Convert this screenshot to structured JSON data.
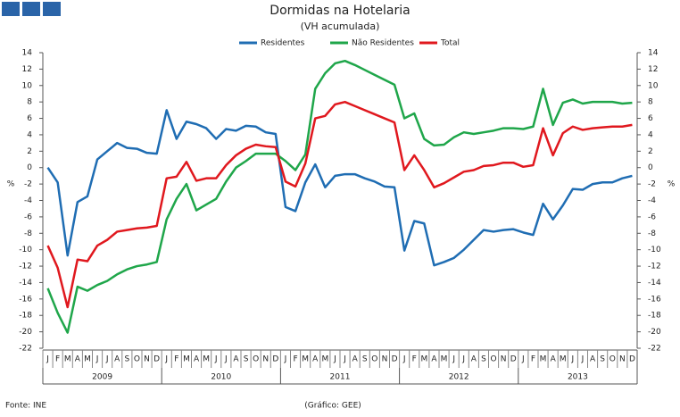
{
  "chart_data": {
    "type": "line",
    "title": "Dormidas na Hotelaria",
    "subtitle": "(VH acumulada)",
    "y_label": "%",
    "source": "Fonte: INE",
    "credit": "(Gráfico: GEE)",
    "categories": [
      "J",
      "F",
      "M",
      "A",
      "M",
      "J",
      "J",
      "A",
      "S",
      "O",
      "N",
      "D",
      "J",
      "F",
      "M",
      "A",
      "M",
      "J",
      "J",
      "A",
      "S",
      "O",
      "N",
      "D",
      "J",
      "F",
      "M",
      "A",
      "M",
      "J",
      "J",
      "A",
      "S",
      "O",
      "N",
      "D",
      "J",
      "F",
      "M",
      "A",
      "M",
      "J",
      "J",
      "A",
      "S",
      "O",
      "N",
      "D",
      "J",
      "F",
      "M",
      "A",
      "M",
      "J",
      "J",
      "A",
      "S",
      "O",
      "N",
      "D"
    ],
    "groups": [
      "2009",
      "2010",
      "2011",
      "2012",
      "2013"
    ],
    "ylim": [
      -22,
      14
    ],
    "yticks": [
      -22,
      -20,
      -18,
      -16,
      -14,
      -12,
      -10,
      -8,
      -6,
      -4,
      -2,
      0,
      2,
      4,
      6,
      8,
      10,
      12,
      14
    ],
    "grid": false,
    "series": [
      {
        "name": "Residentes",
        "color": "#1f6db3",
        "values": [
          0,
          -1.8,
          -10.7,
          -4.2,
          -3.5,
          1,
          2,
          3,
          2.4,
          2.3,
          1.8,
          1.7,
          7,
          3.5,
          5.6,
          5.3,
          4.8,
          3.5,
          4.7,
          4.5,
          5.1,
          5,
          4.3,
          4.1,
          -4.8,
          -5.3,
          -1.8,
          0.4,
          -2.4,
          -1,
          -0.8,
          -0.8,
          -1.3,
          -1.7,
          -2.3,
          -2.4,
          -10.1,
          -6.5,
          -6.8,
          -11.9,
          -11.5,
          -11,
          -10,
          -8.8,
          -7.6,
          -7.8,
          -7.6,
          -7.5,
          -7.9,
          -8.2,
          -4.4,
          -6.3,
          -4.6,
          -2.6,
          -2.7,
          -2,
          -1.8,
          -1.8,
          -1.3,
          -1
        ]
      },
      {
        "name": "Não Residentes",
        "color": "#1fa64a",
        "values": [
          -14.7,
          -17.7,
          -20.1,
          -14.5,
          -15,
          -14.3,
          -13.8,
          -13,
          -12.4,
          -12,
          -11.8,
          -11.5,
          -6.3,
          -3.8,
          -2,
          -5.2,
          -4.5,
          -3.8,
          -1.7,
          0,
          0.8,
          1.7,
          1.7,
          1.7,
          0.8,
          -0.3,
          1.6,
          9.6,
          11.5,
          12.7,
          13,
          12.5,
          11.9,
          11.3,
          10.7,
          10.1,
          6,
          6.6,
          3.5,
          2.7,
          2.8,
          3.7,
          4.3,
          4.1,
          4.3,
          4.5,
          4.8,
          4.8,
          4.7,
          5,
          9.6,
          5.2,
          7.9,
          8.3,
          7.8,
          8,
          8,
          8,
          7.8,
          7.9
        ]
      },
      {
        "name": "Total",
        "color": "#e0181e",
        "values": [
          -9.5,
          -12.2,
          -17,
          -11.2,
          -11.4,
          -9.5,
          -8.8,
          -7.8,
          -7.6,
          -7.4,
          -7.3,
          -7.1,
          -1.3,
          -1.1,
          0.7,
          -1.6,
          -1.3,
          -1.3,
          0.3,
          1.5,
          2.3,
          2.8,
          2.6,
          2.5,
          -1.7,
          -2.3,
          0.5,
          6,
          6.3,
          7.7,
          8,
          7.5,
          7,
          6.5,
          6,
          5.5,
          -0.3,
          1.5,
          -0.3,
          -2.4,
          -1.9,
          -1.2,
          -0.5,
          -0.3,
          0.2,
          0.3,
          0.6,
          0.6,
          0.1,
          0.3,
          4.8,
          1.5,
          4.2,
          5,
          4.6,
          4.8,
          4.9,
          5,
          5,
          5.2
        ]
      }
    ]
  }
}
